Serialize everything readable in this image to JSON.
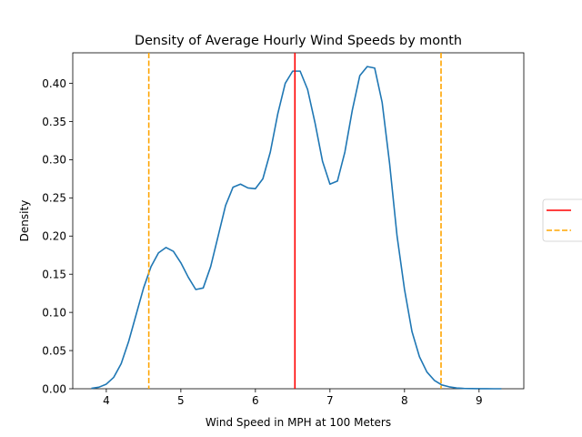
{
  "chart_data": {
    "type": "line",
    "title": "Density of Average Hourly Wind Speeds by month",
    "xlabel": "Wind Speed in MPH at 100 Meters",
    "ylabel": "Density",
    "xlim": [
      3.55,
      9.6
    ],
    "ylim": [
      0.0,
      0.44
    ],
    "xticks": [
      4,
      5,
      6,
      7,
      8,
      9
    ],
    "xtick_labels": [
      "4",
      "5",
      "6",
      "7",
      "8",
      "9"
    ],
    "yticks": [
      0.0,
      0.05,
      0.1,
      0.15,
      0.2,
      0.25,
      0.3,
      0.35,
      0.4
    ],
    "ytick_labels": [
      "0.00",
      "0.05",
      "0.10",
      "0.15",
      "0.20",
      "0.25",
      "0.30",
      "0.35",
      "0.40"
    ],
    "grid": false,
    "legend": {
      "placement": "right-outside",
      "entries": [
        {
          "label": "",
          "color": "#ff0000",
          "style": "solid"
        },
        {
          "label": "",
          "color": "#ffa500",
          "style": "dashed"
        }
      ]
    },
    "series": [
      {
        "color": "#1f77b4",
        "x": [
          3.8,
          3.9,
          4.0,
          4.1,
          4.2,
          4.3,
          4.4,
          4.5,
          4.6,
          4.7,
          4.8,
          4.9,
          5.0,
          5.1,
          5.2,
          5.3,
          5.4,
          5.5,
          5.6,
          5.7,
          5.8,
          5.9,
          6.0,
          6.1,
          6.2,
          6.3,
          6.4,
          6.5,
          6.6,
          6.7,
          6.8,
          6.9,
          7.0,
          7.1,
          7.2,
          7.3,
          7.4,
          7.5,
          7.6,
          7.7,
          7.8,
          7.9,
          8.0,
          8.1,
          8.2,
          8.3,
          8.4,
          8.5,
          8.6,
          8.7,
          8.8,
          8.9,
          9.0,
          9.1,
          9.2,
          9.3
        ],
        "y": [
          0.0005,
          0.002,
          0.006,
          0.015,
          0.033,
          0.062,
          0.097,
          0.132,
          0.16,
          0.178,
          0.185,
          0.18,
          0.165,
          0.146,
          0.13,
          0.132,
          0.16,
          0.2,
          0.24,
          0.264,
          0.268,
          0.263,
          0.262,
          0.275,
          0.31,
          0.36,
          0.4,
          0.416,
          0.416,
          0.392,
          0.348,
          0.298,
          0.268,
          0.272,
          0.31,
          0.365,
          0.41,
          0.422,
          0.42,
          0.375,
          0.295,
          0.2,
          0.13,
          0.075,
          0.042,
          0.022,
          0.011,
          0.005,
          0.0025,
          0.001,
          0.0004,
          0.0002,
          0.0001,
          5e-05,
          0.0,
          0.0
        ]
      }
    ],
    "vlines": [
      {
        "x": 6.53,
        "color": "#ff0000",
        "style": "solid"
      },
      {
        "x": 4.57,
        "color": "#ffa500",
        "style": "dashed"
      },
      {
        "x": 8.49,
        "color": "#ffa500",
        "style": "dashed"
      }
    ]
  }
}
